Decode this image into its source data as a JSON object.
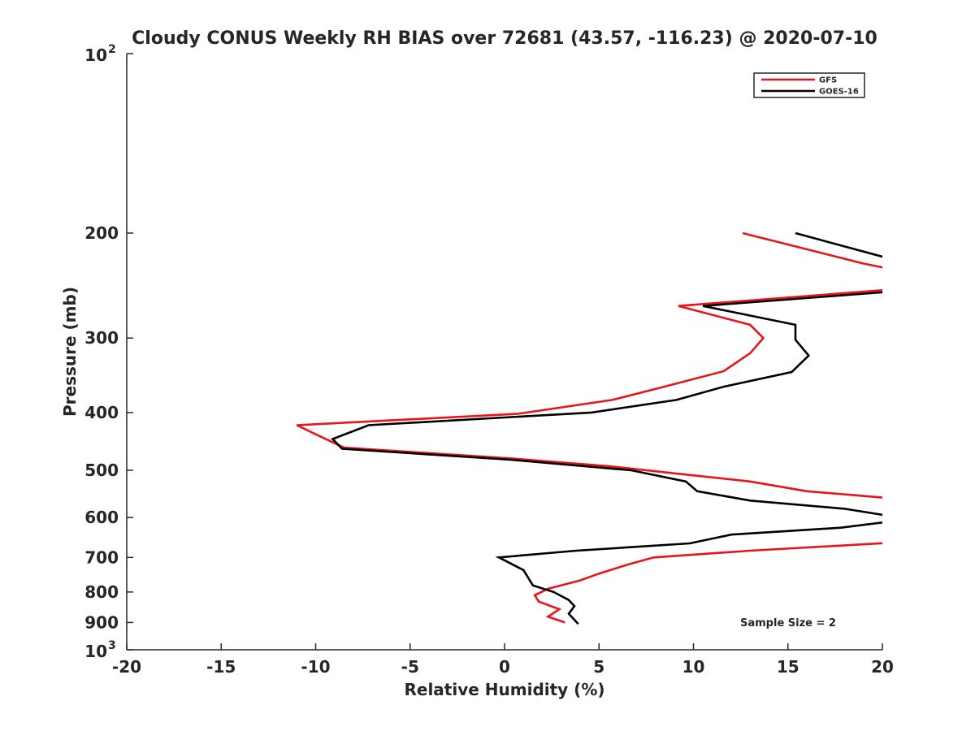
{
  "chart_data": {
    "type": "line",
    "title": "Cloudy CONUS Weekly RH BIAS over 72681 (43.57, -116.23) @ 2020-07-10",
    "xlabel": "Relative Humidity (%)",
    "ylabel": "Pressure (mb)",
    "xlim": [
      -20,
      20
    ],
    "ylim": [
      100,
      1000
    ],
    "yscale": "log",
    "y_reversed": true,
    "grid": false,
    "x_ticks": [
      {
        "value": -20,
        "label": "-20"
      },
      {
        "value": -15,
        "label": "-15"
      },
      {
        "value": -10,
        "label": "-10"
      },
      {
        "value": -5,
        "label": "-5"
      },
      {
        "value": 0,
        "label": "0"
      },
      {
        "value": 5,
        "label": "5"
      },
      {
        "value": 10,
        "label": "10"
      },
      {
        "value": 15,
        "label": "15"
      },
      {
        "value": 20,
        "label": "20"
      }
    ],
    "y_ticks": [
      {
        "value": 200,
        "label": "200"
      },
      {
        "value": 300,
        "label": "300"
      },
      {
        "value": 400,
        "label": "400"
      },
      {
        "value": 500,
        "label": "500"
      },
      {
        "value": 600,
        "label": "600"
      },
      {
        "value": 700,
        "label": "700"
      },
      {
        "value": 800,
        "label": "800"
      },
      {
        "value": 900,
        "label": "900"
      }
    ],
    "y_ticks_power": [
      {
        "value": 100,
        "base": "10",
        "exp": "2"
      },
      {
        "value": 1000,
        "base": "10",
        "exp": "3"
      }
    ],
    "legend_position": "top-right",
    "annotation": "Sample Size = 2",
    "series": [
      {
        "name": "GFS",
        "color": "#e8141c",
        "points": [
          {
            "x": 12.6,
            "p": 200
          },
          {
            "x": 19.0,
            "p": 225
          },
          {
            "x": 20.5,
            "p": 230
          },
          {
            "x": 21.0,
            "p": 248
          },
          {
            "x": 9.2,
            "p": 265
          },
          {
            "x": 13.0,
            "p": 285
          },
          {
            "x": 13.7,
            "p": 300
          },
          {
            "x": 13.0,
            "p": 318
          },
          {
            "x": 11.6,
            "p": 341
          },
          {
            "x": 8.3,
            "p": 363
          },
          {
            "x": 5.7,
            "p": 381
          },
          {
            "x": 0.7,
            "p": 402
          },
          {
            "x": -11.0,
            "p": 420
          },
          {
            "x": -9.8,
            "p": 438
          },
          {
            "x": -8.5,
            "p": 458
          },
          {
            "x": 0.5,
            "p": 478
          },
          {
            "x": 5.5,
            "p": 492
          },
          {
            "x": 9.0,
            "p": 506
          },
          {
            "x": 13.0,
            "p": 522
          },
          {
            "x": 16.0,
            "p": 542
          },
          {
            "x": 20.5,
            "p": 557
          },
          {
            "x": 21.0,
            "p": 660
          },
          {
            "x": 13.0,
            "p": 682
          },
          {
            "x": 7.9,
            "p": 700
          },
          {
            "x": 6.5,
            "p": 720
          },
          {
            "x": 5.0,
            "p": 745
          },
          {
            "x": 4.0,
            "p": 765
          },
          {
            "x": 2.3,
            "p": 790
          },
          {
            "x": 1.6,
            "p": 810
          },
          {
            "x": 1.8,
            "p": 830
          },
          {
            "x": 2.9,
            "p": 855
          },
          {
            "x": 2.3,
            "p": 880
          },
          {
            "x": 3.2,
            "p": 900
          }
        ]
      },
      {
        "name": "GOES-16",
        "color": "#000000",
        "points": [
          {
            "x": 15.4,
            "p": 200
          },
          {
            "x": 20.2,
            "p": 220
          },
          {
            "x": 21.0,
            "p": 250
          },
          {
            "x": 10.5,
            "p": 265
          },
          {
            "x": 15.4,
            "p": 285
          },
          {
            "x": 15.4,
            "p": 302
          },
          {
            "x": 16.1,
            "p": 321
          },
          {
            "x": 15.2,
            "p": 342
          },
          {
            "x": 11.6,
            "p": 362
          },
          {
            "x": 9.1,
            "p": 381
          },
          {
            "x": 4.6,
            "p": 400
          },
          {
            "x": -7.2,
            "p": 420
          },
          {
            "x": -9.1,
            "p": 443
          },
          {
            "x": -8.6,
            "p": 460
          },
          {
            "x": 0.3,
            "p": 480
          },
          {
            "x": 6.7,
            "p": 500
          },
          {
            "x": 9.6,
            "p": 522
          },
          {
            "x": 10.2,
            "p": 542
          },
          {
            "x": 13.0,
            "p": 562
          },
          {
            "x": 18.0,
            "p": 580
          },
          {
            "x": 20.5,
            "p": 597
          },
          {
            "x": 20.3,
            "p": 610
          },
          {
            "x": 17.8,
            "p": 624
          },
          {
            "x": 12.0,
            "p": 641
          },
          {
            "x": 9.8,
            "p": 663
          },
          {
            "x": 3.8,
            "p": 682
          },
          {
            "x": -0.3,
            "p": 700
          },
          {
            "x": 1.0,
            "p": 735
          },
          {
            "x": 1.5,
            "p": 780
          },
          {
            "x": 2.6,
            "p": 800
          },
          {
            "x": 3.4,
            "p": 825
          },
          {
            "x": 3.7,
            "p": 845
          },
          {
            "x": 3.4,
            "p": 870
          },
          {
            "x": 3.9,
            "p": 905
          }
        ]
      }
    ]
  }
}
